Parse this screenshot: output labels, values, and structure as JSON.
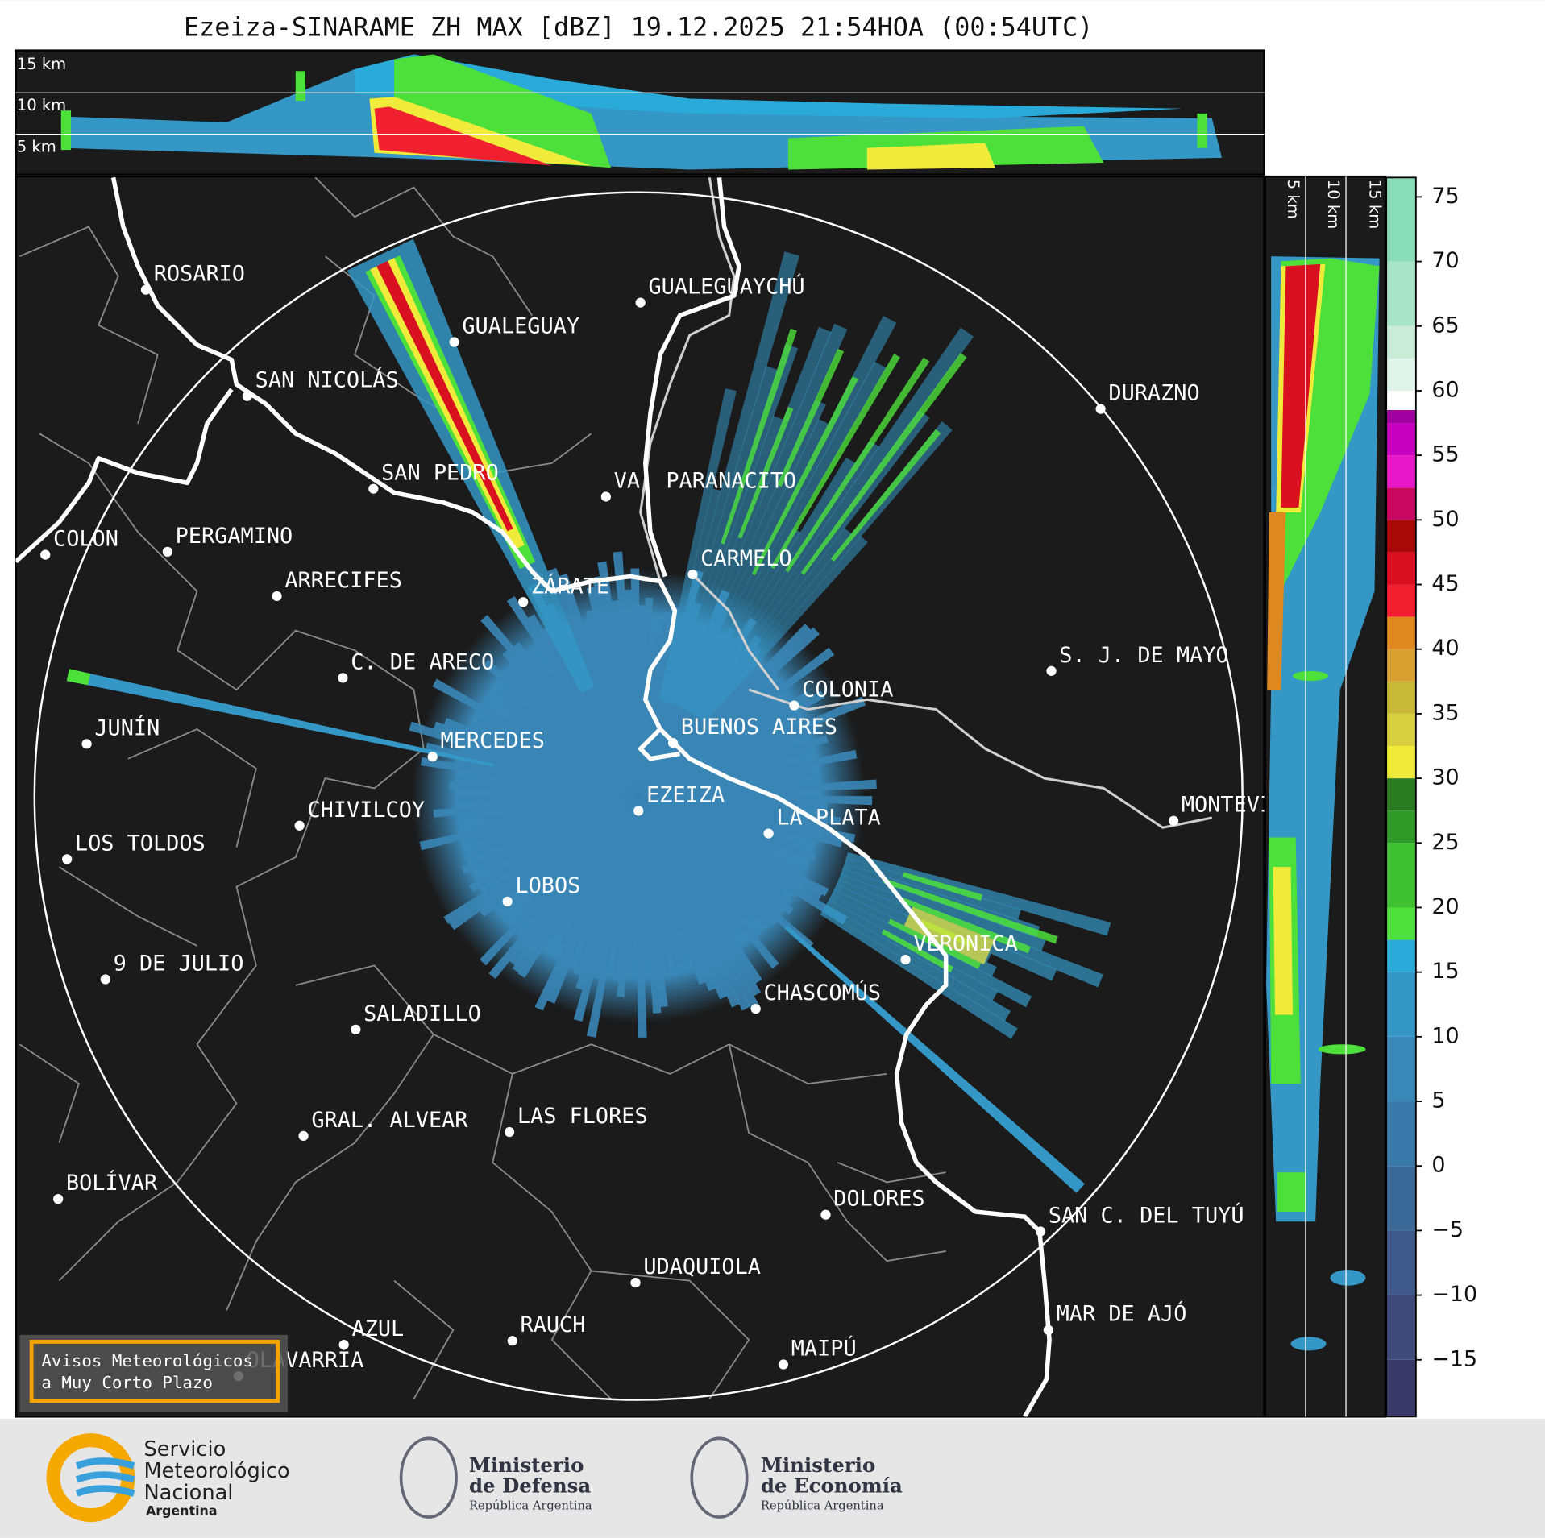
{
  "header": {
    "title": "Ezeiza-SINARAME ZH MAX [dBZ] 19.12.2025 21:54HOA (00:54UTC)"
  },
  "height_labels": [
    "15 km",
    "10 km",
    "5 km"
  ],
  "cities": [
    {
      "name": "ROSARIO"
    },
    {
      "name": "GUALEGUAYCHÚ"
    },
    {
      "name": "GUALEGUAY"
    },
    {
      "name": "SAN NICOLÁS"
    },
    {
      "name": "DURAZNO"
    },
    {
      "name": "SAN PEDRO"
    },
    {
      "name": "VA. PARANACITO"
    },
    {
      "name": "COLON"
    },
    {
      "name": "PERGAMINO"
    },
    {
      "name": "CARMELO"
    },
    {
      "name": "ARRECIFES"
    },
    {
      "name": "ZÁRATE"
    },
    {
      "name": "S. J. DE MAYO"
    },
    {
      "name": "C. DE ARECO"
    },
    {
      "name": "COLONIA"
    },
    {
      "name": "JUNÍN"
    },
    {
      "name": "BUENOS AIRES"
    },
    {
      "name": "MERCEDES"
    },
    {
      "name": "EZEIZA"
    },
    {
      "name": "MONTEVIDEO"
    },
    {
      "name": "CHIVILCOY"
    },
    {
      "name": "LA PLATA"
    },
    {
      "name": "LOS TOLDOS"
    },
    {
      "name": "LOBOS"
    },
    {
      "name": "VERONICA"
    },
    {
      "name": "9 DE JULIO"
    },
    {
      "name": "CHASCOMÚS"
    },
    {
      "name": "SALADILLO"
    },
    {
      "name": "GRAL. ALVEAR"
    },
    {
      "name": "LAS FLORES"
    },
    {
      "name": "BOLÍVAR"
    },
    {
      "name": "DOLORES"
    },
    {
      "name": "SAN C. DEL TUYÚ"
    },
    {
      "name": "UDAQUIOLA"
    },
    {
      "name": "MAR DE AJÓ"
    },
    {
      "name": "RAUCH"
    },
    {
      "name": "AZUL"
    },
    {
      "name": "OLAVARRÍA"
    },
    {
      "name": "MAIPÚ"
    }
  ],
  "badge": [
    "Avisos Meteorológicos",
    "a Muy Corto Plazo"
  ],
  "colorbar": {
    "lim": [
      -19.4,
      76.5
    ],
    "ticks": [
      {
        "value": -15,
        "label": "−15"
      },
      {
        "value": -10,
        "label": "−10"
      },
      {
        "value": -5,
        "label": "−5"
      },
      0,
      5,
      10,
      15,
      20,
      25,
      30,
      35,
      40,
      45,
      50,
      55,
      60,
      65,
      70,
      75
    ],
    "bands": [
      {
        "from": -19.4,
        "to": -15,
        "color": "#3a3a6a"
      },
      {
        "from": -15,
        "to": -10,
        "color": "#3f4a7a"
      },
      {
        "from": -10,
        "to": -5,
        "color": "#3f5a8a"
      },
      {
        "from": -5,
        "to": 0,
        "color": "#3c6a98"
      },
      {
        "from": 0,
        "to": 5,
        "color": "#3a7aaa"
      },
      {
        "from": 5,
        "to": 10,
        "color": "#3a88b8"
      },
      {
        "from": 10,
        "to": 15,
        "color": "#3497c6"
      },
      {
        "from": 15,
        "to": 17.5,
        "color": "#2aaad8"
      },
      {
        "from": 17.5,
        "to": 20,
        "color": "#4de03a"
      },
      {
        "from": 20,
        "to": 25,
        "color": "#3ec030"
      },
      {
        "from": 25,
        "to": 27.5,
        "color": "#2f9a28"
      },
      {
        "from": 27.5,
        "to": 30,
        "color": "#2a7a22"
      },
      {
        "from": 30,
        "to": 32.5,
        "color": "#f0ea3a"
      },
      {
        "from": 32.5,
        "to": 35,
        "color": "#d8d040"
      },
      {
        "from": 35,
        "to": 37.5,
        "color": "#c8b838"
      },
      {
        "from": 37.5,
        "to": 40,
        "color": "#d8a030"
      },
      {
        "from": 40,
        "to": 42.5,
        "color": "#e08820"
      },
      {
        "from": 42.5,
        "to": 45,
        "color": "#f02030"
      },
      {
        "from": 45,
        "to": 47.5,
        "color": "#d81020"
      },
      {
        "from": 47.5,
        "to": 50,
        "color": "#a80808"
      },
      {
        "from": 50,
        "to": 52.5,
        "color": "#c80860"
      },
      {
        "from": 52.5,
        "to": 55,
        "color": "#e818c8"
      },
      {
        "from": 55,
        "to": 57.5,
        "color": "#c800c0"
      },
      {
        "from": 57.5,
        "to": 58.5,
        "color": "#a000a0"
      },
      {
        "from": 58.5,
        "to": 60,
        "color": "#ffffff"
      },
      {
        "from": 60,
        "to": 62.5,
        "color": "#e0f4ea"
      },
      {
        "from": 62.5,
        "to": 65,
        "color": "#c8ecd8"
      },
      {
        "from": 65,
        "to": 70,
        "color": "#a8e4c8"
      },
      {
        "from": 70,
        "to": 76.5,
        "color": "#88dcb8"
      }
    ]
  },
  "footer": {
    "smn": [
      "Servicio",
      "Meteorológico",
      "Nacional",
      "Argentina"
    ],
    "defensa": [
      "Ministerio",
      "de Defensa",
      "República Argentina"
    ],
    "economia": [
      "Ministerio",
      "de Economía",
      "República Argentina"
    ]
  }
}
